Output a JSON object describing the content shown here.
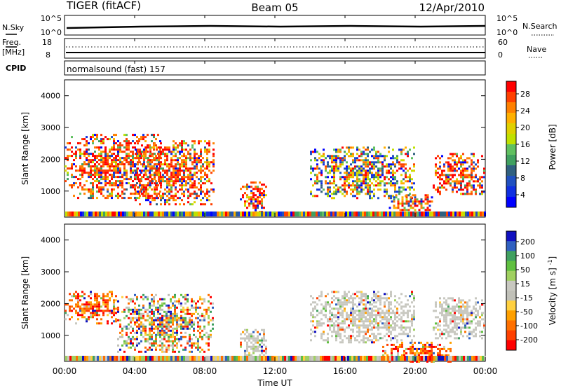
{
  "header": {
    "title": "TIGER (fitACF)",
    "beam": "Beam 05",
    "date": "12/Apr/2010"
  },
  "top_strip": {
    "nsky_label": "N.Sky",
    "nsky_ticks": [
      "10^5",
      "10^0"
    ],
    "nsearch_label": "N.Search",
    "nsearch_ticks": [
      "10^5",
      "10^0"
    ],
    "freq_label_1": "Freq.",
    "freq_label_2": "[MHz]",
    "freq_ticks": [
      "18",
      "8"
    ],
    "nave_label": "Nave",
    "nave_ticks": [
      "60",
      "0"
    ],
    "cpid_label": "CPID",
    "cpid_text": "normalsound (fast) 157"
  },
  "chart_data": [
    {
      "type": "heatmap",
      "title": "",
      "xlabel": "Time UT",
      "ylabel": "Slant Range [km]",
      "x_ticks": [
        "00:00",
        "04:00",
        "08:00",
        "12:00",
        "16:00",
        "20:00",
        "00:00"
      ],
      "xlim_hours": [
        0,
        24
      ],
      "y_ticks": [
        1000,
        2000,
        3000,
        4000
      ],
      "ylim": [
        180,
        4500
      ],
      "colorbar": {
        "label": "Power [dB]",
        "ticks": [
          "28",
          "24",
          "20",
          "16",
          "12",
          "8",
          "4"
        ],
        "colors": [
          "#ff0000",
          "#ff4000",
          "#ff8000",
          "#ffb000",
          "#e0d000",
          "#c0e000",
          "#60c060",
          "#40a060",
          "#306080",
          "#2050c0",
          "#1030e0",
          "#0000ff"
        ]
      },
      "echo_regions": [
        {
          "t_start": 0.0,
          "t_end": 5.5,
          "range_min": 800,
          "range_max": 2800,
          "level": "high"
        },
        {
          "t_start": 4.0,
          "t_end": 8.5,
          "range_min": 600,
          "range_max": 2600,
          "level": "high"
        },
        {
          "t_start": 10.0,
          "t_end": 11.5,
          "range_min": 300,
          "range_max": 1300,
          "level": "high"
        },
        {
          "t_start": 14.0,
          "t_end": 20.0,
          "range_min": 800,
          "range_max": 2400,
          "level": "medium"
        },
        {
          "t_start": 18.5,
          "t_end": 21.0,
          "range_min": 400,
          "range_max": 900,
          "level": "high"
        },
        {
          "t_start": 21.0,
          "t_end": 24.0,
          "range_min": 900,
          "range_max": 2200,
          "level": "high"
        }
      ]
    },
    {
      "type": "heatmap",
      "title": "",
      "xlabel": "Time UT",
      "ylabel": "Slant Range [km]",
      "x_ticks": [
        "00:00",
        "04:00",
        "08:00",
        "12:00",
        "16:00",
        "20:00",
        "00:00"
      ],
      "xlim_hours": [
        0,
        24
      ],
      "y_ticks": [
        1000,
        2000,
        3000,
        4000
      ],
      "ylim": [
        180,
        4500
      ],
      "colorbar": {
        "label": "Velocity [m s^-1]",
        "ticks": [
          "200",
          "100",
          "50",
          "15",
          "-15",
          "-50",
          "-100",
          "-200"
        ],
        "colors": [
          "#1010c0",
          "#3060c0",
          "#40a060",
          "#60c040",
          "#a0d060",
          "#c8c8c0",
          "#c0c0b8",
          "#ffd040",
          "#ffa000",
          "#ff7000",
          "#ff4000",
          "#ff0000"
        ]
      },
      "echo_regions": [
        {
          "t_start": 0.0,
          "t_end": 3.0,
          "range_min": 1400,
          "range_max": 2400,
          "velocity": "negative"
        },
        {
          "t_start": 3.0,
          "t_end": 8.5,
          "range_min": 500,
          "range_max": 2300,
          "velocity": "mixed"
        },
        {
          "t_start": 10.0,
          "t_end": 11.5,
          "range_min": 300,
          "range_max": 1200,
          "velocity": "near-zero"
        },
        {
          "t_start": 14.0,
          "t_end": 20.0,
          "range_min": 800,
          "range_max": 2400,
          "velocity": "near-zero"
        },
        {
          "t_start": 18.0,
          "t_end": 22.0,
          "range_min": 200,
          "range_max": 800,
          "velocity": "negative"
        },
        {
          "t_start": 21.0,
          "t_end": 24.0,
          "range_min": 900,
          "range_max": 2200,
          "velocity": "near-zero"
        }
      ]
    }
  ]
}
